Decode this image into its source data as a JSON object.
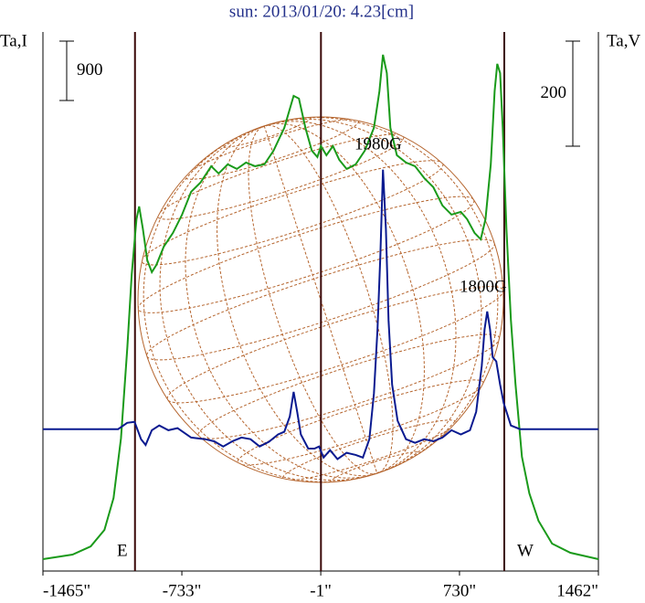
{
  "chart_data": {
    "type": "line",
    "title": "sun: 2013/01/20: 4.23[cm]",
    "y_label": "Ta,I",
    "y2_label": "Ta,V",
    "xlim": [
      -1465,
      1462
    ],
    "xticks": [
      {
        "value": -1465,
        "label": "-1465\""
      },
      {
        "value": -733,
        "label": "-733\""
      },
      {
        "value": -1,
        "label": "-1\""
      },
      {
        "value": 730,
        "label": "730\""
      },
      {
        "value": 1462,
        "label": "1462\""
      }
    ],
    "ylim": [
      0,
      8170
    ],
    "y2lim": [
      -270,
      756
    ],
    "scale_bars": [
      900,
      200
    ],
    "markers": [
      -980,
      0,
      966
    ],
    "annotations": [
      "1980G",
      "1800G",
      "E",
      "W"
    ],
    "series": [
      {
        "color": "#1a9a1a",
        "x": [
          -1465,
          -1309,
          -1213,
          -1141,
          -1093,
          -1054,
          -1020,
          -997,
          -972,
          -958,
          -939,
          -915,
          -891,
          -867,
          -828,
          -780,
          -732,
          -684,
          -635,
          -578,
          -539,
          -491,
          -443,
          -395,
          -347,
          -298,
          -250,
          -193,
          -144,
          -116,
          -82,
          -48,
          -19,
          0,
          29,
          63,
          96,
          135,
          183,
          231,
          279,
          308,
          327,
          347,
          366,
          400,
          448,
          496,
          544,
          592,
          640,
          688,
          737,
          770,
          809,
          842,
          867,
          895,
          915,
          929,
          944,
          958,
          977,
          1001,
          1025,
          1059,
          1098,
          1146,
          1218,
          1314,
          1462
        ],
        "values": [
          180,
          249,
          374,
          623,
          1108,
          2008,
          3393,
          4501,
          5332,
          5526,
          5194,
          4709,
          4529,
          4640,
          4917,
          5125,
          5402,
          5748,
          5886,
          6136,
          6025,
          6163,
          6094,
          6191,
          6136,
          6163,
          6371,
          6717,
          7202,
          7160,
          6717,
          6371,
          6274,
          6440,
          6302,
          6440,
          6233,
          6094,
          6163,
          6371,
          6717,
          7271,
          7825,
          7548,
          6717,
          6302,
          6191,
          6136,
          5956,
          5817,
          5540,
          5402,
          5443,
          5332,
          5125,
          5028,
          5332,
          6163,
          7271,
          7687,
          7548,
          6717,
          5194,
          3809,
          2839,
          1731,
          1177,
          762,
          416,
          277,
          180
        ]
      },
      {
        "color": "#0a1a90",
        "axis": "y2",
        "x": [
          -1465,
          -1069,
          -1021,
          -982,
          -948,
          -924,
          -891,
          -852,
          -804,
          -756,
          -684,
          -611,
          -563,
          -515,
          -467,
          -419,
          -371,
          -323,
          -274,
          -226,
          -193,
          -164,
          -144,
          -125,
          -106,
          -67,
          -34,
          -10,
          14,
          48,
          87,
          135,
          183,
          221,
          255,
          279,
          298,
          313,
          327,
          342,
          356,
          375,
          404,
          448,
          496,
          544,
          592,
          640,
          688,
          737,
          785,
          818,
          847,
          862,
          876,
          891,
          905,
          924,
          944,
          963,
          1001,
          1049,
          1462
        ],
        "values": [
          0,
          0,
          12,
          14,
          -19,
          -30,
          -2,
          7,
          -2,
          2,
          -16,
          -19,
          -23,
          -33,
          -23,
          -16,
          -19,
          -33,
          -24,
          -10,
          -5,
          24,
          71,
          33,
          -10,
          -37,
          -37,
          -33,
          -54,
          -40,
          -57,
          -45,
          -49,
          -54,
          -19,
          68,
          190,
          329,
          494,
          381,
          207,
          85,
          16,
          -19,
          -26,
          -19,
          -23,
          -16,
          -2,
          -10,
          -2,
          33,
          120,
          190,
          224,
          190,
          137,
          129,
          85,
          50,
          7,
          0,
          0
        ]
      }
    ]
  }
}
